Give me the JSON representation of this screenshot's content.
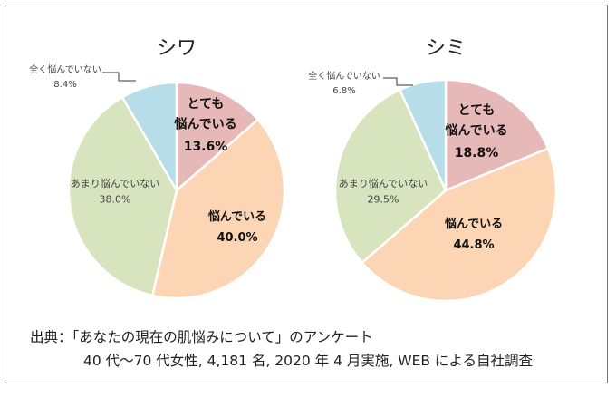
{
  "chart_data": [
    {
      "type": "pie",
      "title": "シワ",
      "categories": [
        "とても悩んでいる",
        "悩んでいる",
        "あまり悩んでいない",
        "全く悩んでいない"
      ],
      "label_lines": [
        [
          "とても",
          "悩んでいる"
        ],
        [
          "悩んでいる"
        ],
        [
          "あまり悩んでいない"
        ],
        [
          "全く悩んでいない"
        ]
      ],
      "values": [
        13.6,
        40.0,
        38.0,
        8.4
      ],
      "value_labels": [
        "13.6%",
        "40.0%",
        "38.0%",
        "8.4%"
      ]
    },
    {
      "type": "pie",
      "title": "シミ",
      "categories": [
        "とても悩んでいる",
        "悩んでいる",
        "あまり悩んでいない",
        "全く悩んでいない"
      ],
      "label_lines": [
        [
          "とても",
          "悩んでいる"
        ],
        [
          "悩んでいる"
        ],
        [
          "あまり悩んでいない"
        ],
        [
          "全く悩んでいない"
        ]
      ],
      "values": [
        18.8,
        44.8,
        29.5,
        6.8
      ],
      "value_labels": [
        "18.8%",
        "44.8%",
        "29.5%",
        "6.8%"
      ]
    }
  ],
  "colors": [
    "#e6b9b8",
    "#fcd5b5",
    "#d7e4bd",
    "#b7dee8"
  ],
  "footer": {
    "line1": "出典：「あなたの現在の肌悩みについて」のアンケート",
    "line2": "40 代～70 代女性, 4,181 名, 2020 年 4 月実施, WEB による自社調査"
  }
}
